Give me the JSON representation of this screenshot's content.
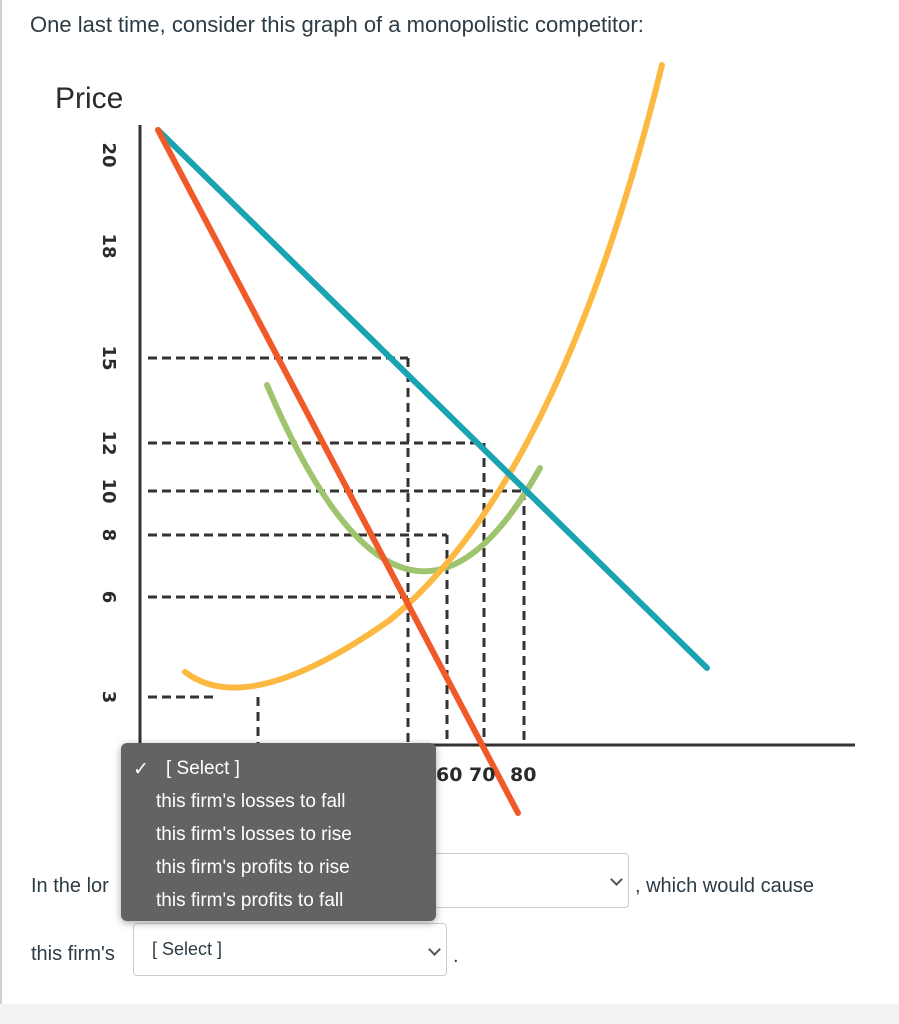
{
  "question": {
    "text": "One last time, consider this graph of a monopolistic competitor:"
  },
  "graph": {
    "y_axis_label": "Price",
    "y_ticks": [
      "20",
      "18",
      "15",
      "12",
      "10",
      "8",
      "6",
      "3"
    ],
    "x_ticks_visible": [
      "60 70",
      "80"
    ],
    "colors": {
      "demand": "#1aa3b0",
      "marginal_revenue": "#f05a28",
      "marginal_cost": "#fbb942",
      "average_total_cost": "#9fc46e",
      "guide_lines": "#333333"
    }
  },
  "sentence": {
    "part1": "In the lor",
    "part2": ", which would cause",
    "part3": "this firm's",
    "period": "."
  },
  "select2": {
    "value": "[ Select ]"
  },
  "dropdown": {
    "selected": "[ Select ]",
    "check": "✓",
    "options": [
      "this firm's losses to fall",
      "this firm's losses to rise",
      "this firm's profits to rise",
      "this firm's profits to fall"
    ]
  }
}
